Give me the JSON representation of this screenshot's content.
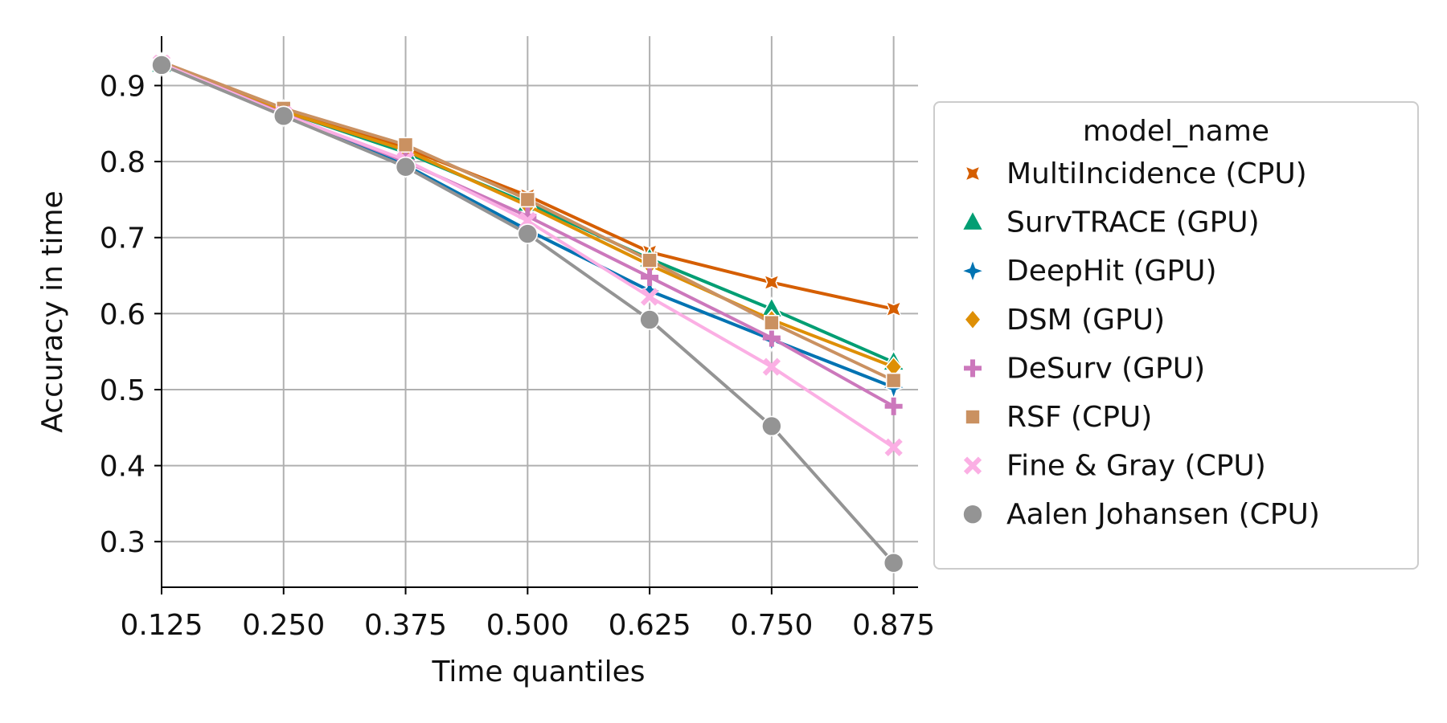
{
  "chart_data": {
    "type": "line",
    "xlabel": "Time quantiles",
    "ylabel": "Accuracy in time",
    "x": [
      0.125,
      0.25,
      0.375,
      0.5,
      0.625,
      0.75,
      0.875
    ],
    "x_tick_labels": [
      "0.125",
      "0.250",
      "0.375",
      "0.500",
      "0.625",
      "0.750",
      "0.875"
    ],
    "y_ticks": [
      0.3,
      0.4,
      0.5,
      0.6,
      0.7,
      0.8,
      0.9
    ],
    "y_tick_labels": [
      "0.3",
      "0.4",
      "0.5",
      "0.6",
      "0.7",
      "0.8",
      "0.9"
    ],
    "xlim": [
      0.125,
      0.9
    ],
    "ylim": [
      0.24,
      0.965
    ],
    "grid": true,
    "legend_title": "model_name",
    "legend_position": "outside-right",
    "series": [
      {
        "name": "MultiIncidence (CPU)",
        "color": "#d55e00",
        "marker": "star4",
        "values": [
          0.931,
          0.866,
          0.818,
          0.755,
          0.681,
          0.641,
          0.606
        ]
      },
      {
        "name": "SurvTRACE (GPU)",
        "color": "#029e73",
        "marker": "triangle",
        "values": [
          0.928,
          0.866,
          0.812,
          0.745,
          0.672,
          0.606,
          0.536
        ]
      },
      {
        "name": "DeepHit (GPU)",
        "color": "#0173b2",
        "marker": "star4-thick",
        "values": [
          0.928,
          0.862,
          0.795,
          0.71,
          0.63,
          0.566,
          0.503
        ]
      },
      {
        "name": "DSM (GPU)",
        "color": "#de8f05",
        "marker": "diamond",
        "values": [
          0.929,
          0.866,
          0.815,
          0.742,
          0.664,
          0.592,
          0.53
        ]
      },
      {
        "name": "DeSurv (GPU)",
        "color": "#cc78bc",
        "marker": "plus",
        "values": [
          0.929,
          0.863,
          0.8,
          0.728,
          0.648,
          0.568,
          0.478
        ]
      },
      {
        "name": "RSF (CPU)",
        "color": "#ca9161",
        "marker": "square",
        "values": [
          0.931,
          0.87,
          0.822,
          0.75,
          0.67,
          0.588,
          0.512
        ]
      },
      {
        "name": "Fine & Gray (CPU)",
        "color": "#fbafe4",
        "marker": "x",
        "values": [
          0.929,
          0.862,
          0.802,
          0.722,
          0.622,
          0.53,
          0.424
        ]
      },
      {
        "name": "Aalen Johansen (CPU)",
        "color": "#949494",
        "marker": "circle",
        "values": [
          0.927,
          0.86,
          0.793,
          0.705,
          0.592,
          0.452,
          0.272
        ]
      }
    ]
  }
}
